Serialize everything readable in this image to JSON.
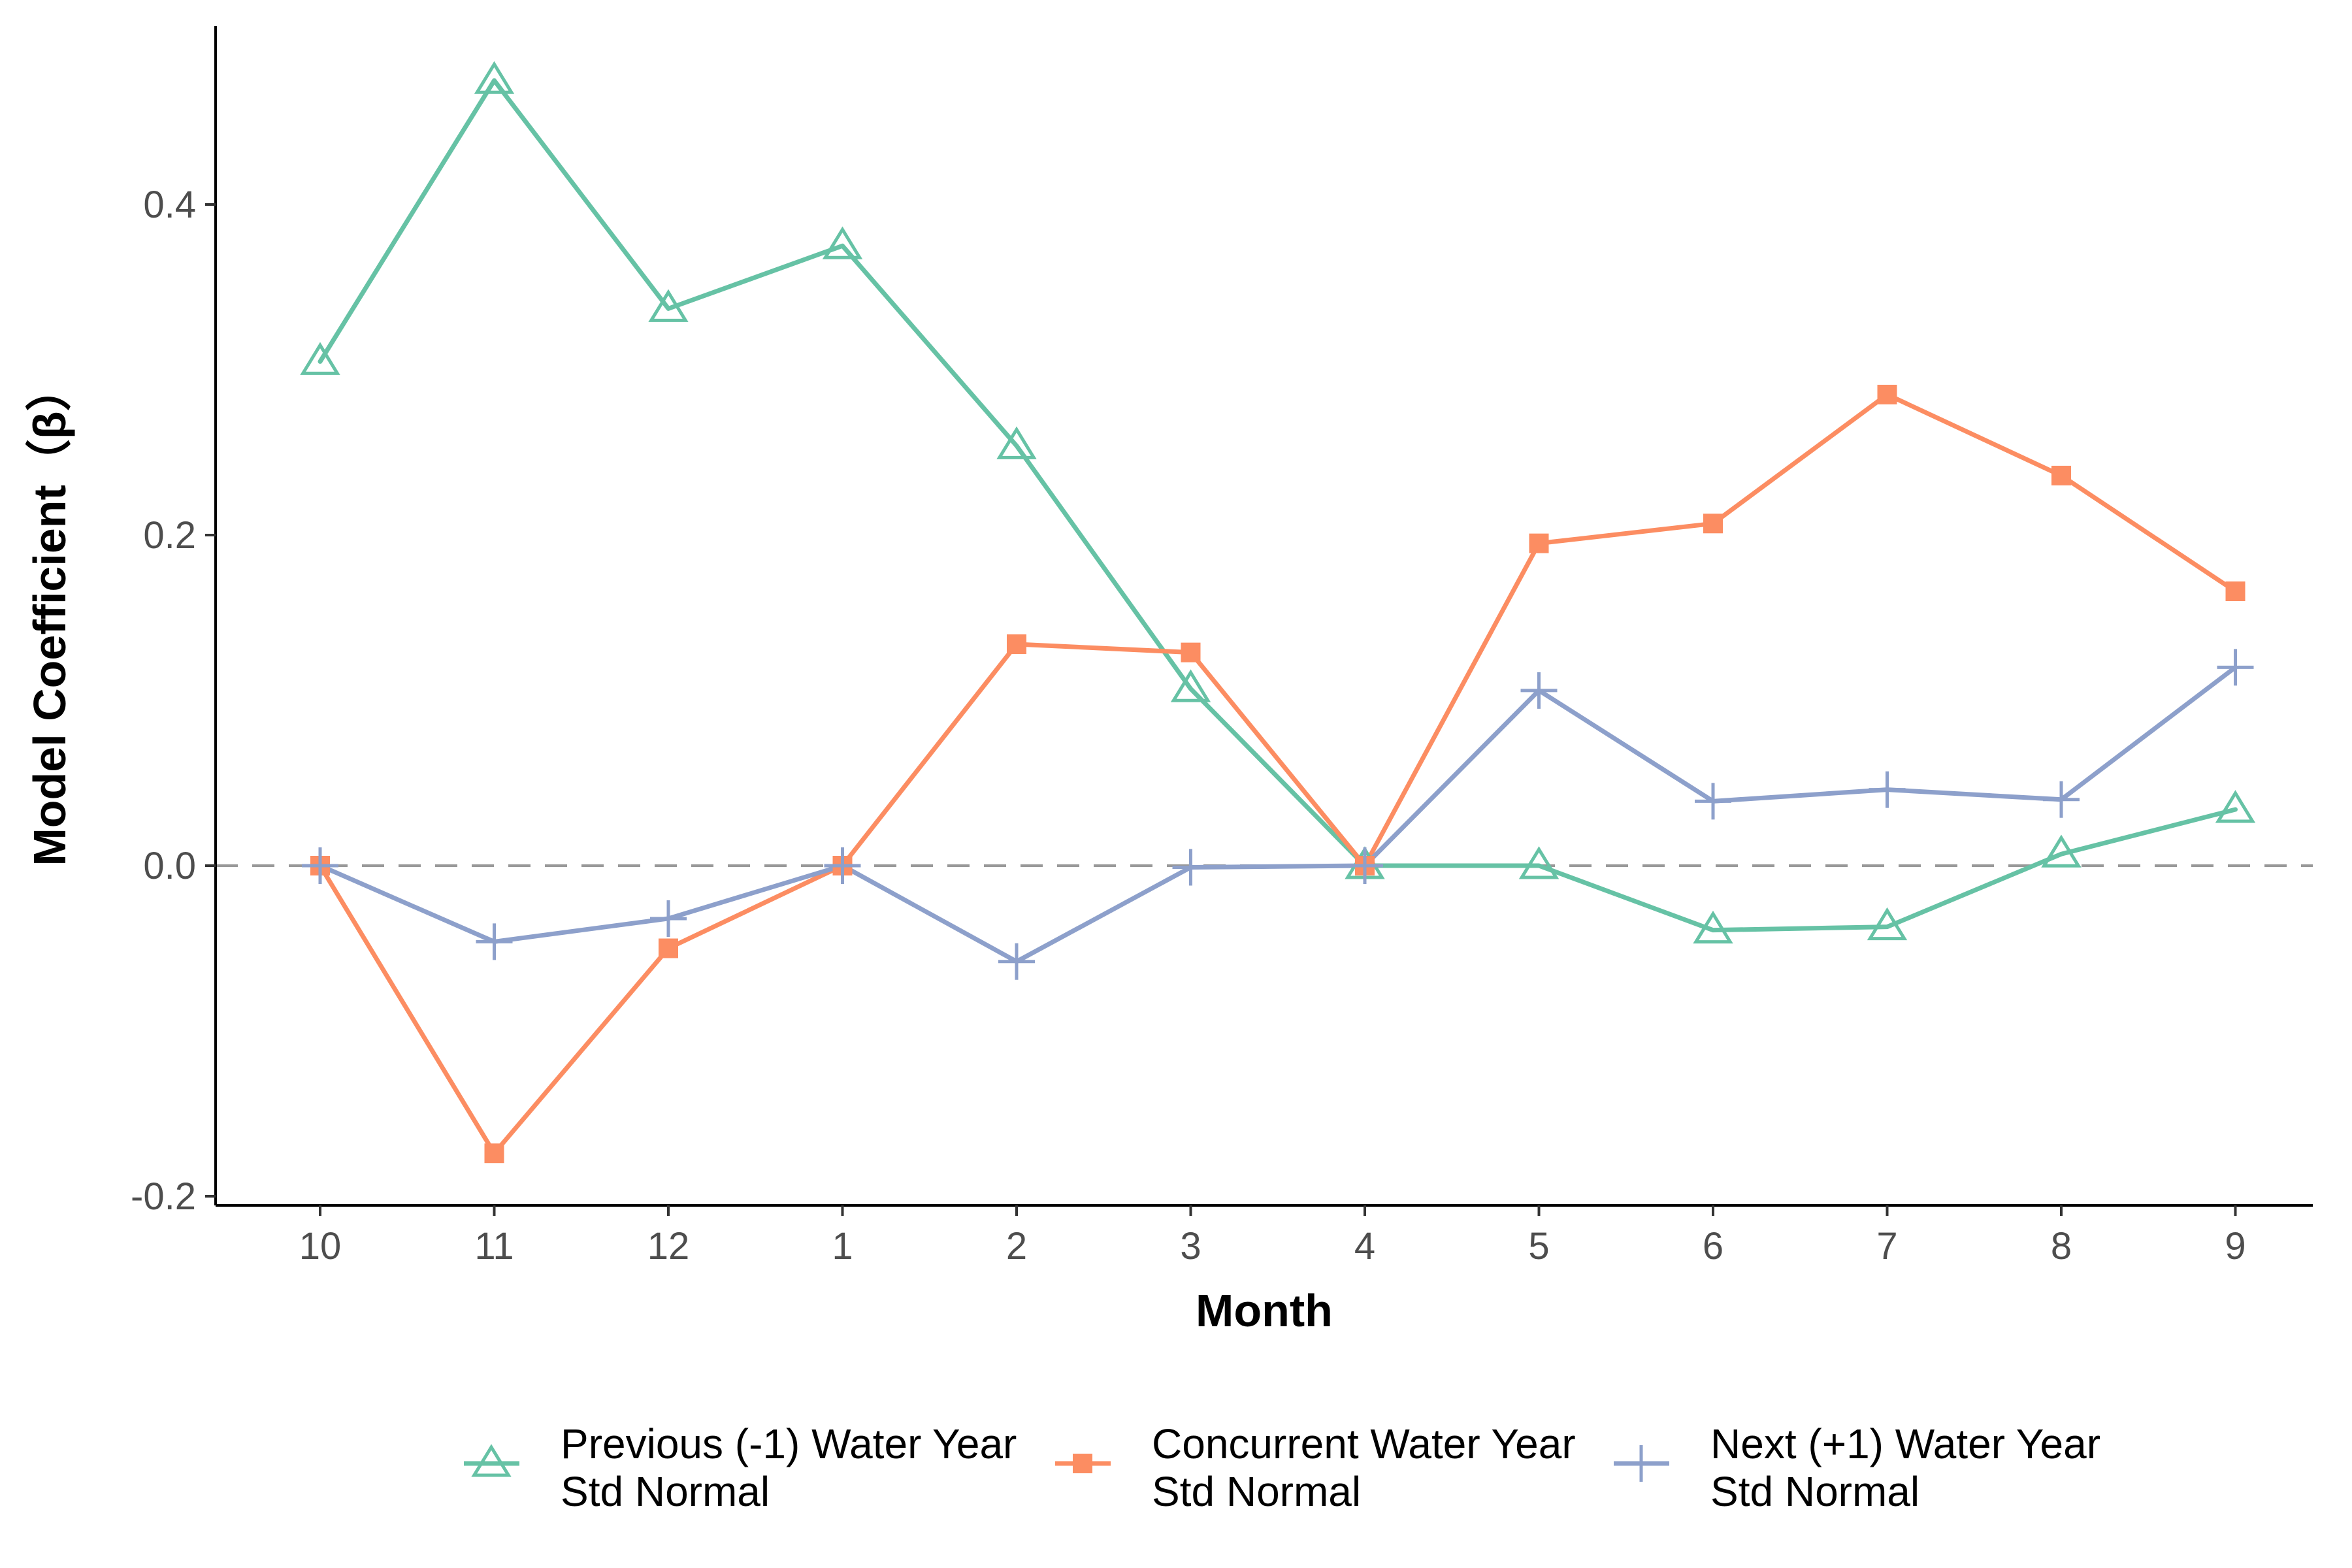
{
  "chart_data": {
    "type": "line",
    "categories": [
      "10",
      "11",
      "12",
      "1",
      "2",
      "3",
      "4",
      "5",
      "6",
      "7",
      "8",
      "9"
    ],
    "xlabel": "Month",
    "ylabel": "Model Coefficient（β）",
    "ylim": [
      -0.2,
      0.5
    ],
    "yticks": [
      -0.2,
      0.0,
      0.2,
      0.4
    ],
    "ytick_labels": [
      "-0.2",
      "0.0",
      "0.2",
      "0.4"
    ],
    "reference_line": {
      "y": 0,
      "style": "dashed",
      "color": "#999999"
    },
    "grid": false,
    "legend_position": "bottom",
    "series": [
      {
        "name_line1": "Previous (-1) Water Year",
        "name_line2": "Std Normal",
        "color": "#66c2a5",
        "marker": "triangle-open",
        "values": [
          0.305,
          0.475,
          0.337,
          0.375,
          0.254,
          0.107,
          0.0,
          0.0,
          -0.039,
          -0.037,
          0.007,
          0.034
        ]
      },
      {
        "name_line1": "Concurrent Water Year",
        "name_line2": "Std Normal",
        "color": "#fc8d62",
        "marker": "square-filled",
        "values": [
          0.0,
          -0.174,
          -0.05,
          0.0,
          0.134,
          0.129,
          0.0,
          0.195,
          0.207,
          0.285,
          0.236,
          0.166
        ]
      },
      {
        "name_line1": "Next (+1) Water Year",
        "name_line2": "Std Normal",
        "color": "#8da0cb",
        "marker": "plus",
        "values": [
          0.0,
          -0.046,
          -0.032,
          0.0,
          -0.058,
          -0.001,
          0.0,
          0.106,
          0.039,
          0.046,
          0.04,
          0.12
        ]
      }
    ]
  }
}
